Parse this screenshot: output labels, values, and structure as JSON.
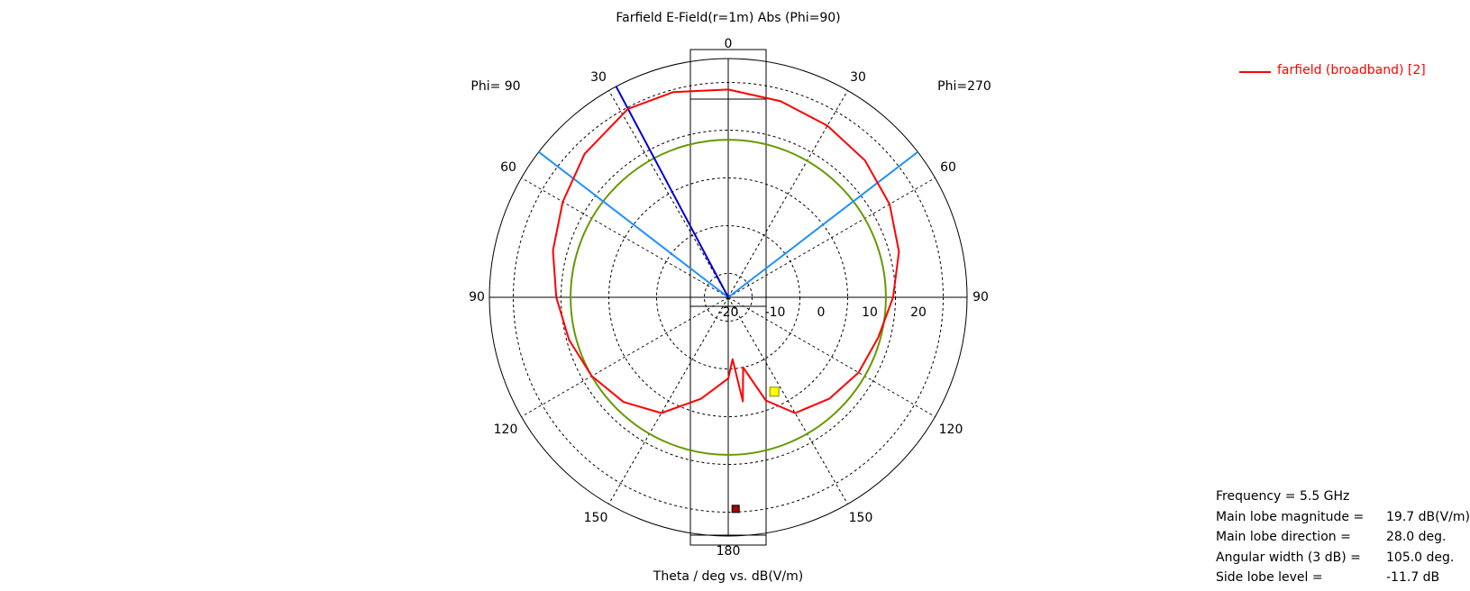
{
  "chart_data": {
    "type": "polar",
    "title": "Farfield E-Field(r=1m) Abs (Phi=90)",
    "xlabel": "Theta / deg vs. dB(V/m)",
    "left_half_label": "Phi= 90",
    "right_half_label": "Phi=270",
    "angle_labels": {
      "top": "0",
      "upper_left": "30",
      "upper_right": "30",
      "mid_upper_left": "60",
      "mid_upper_right": "60",
      "left": "90",
      "right": "90",
      "lower_mid_left": "120",
      "lower_mid_right": "120",
      "lower_left": "150",
      "lower_right": "150",
      "bottom": "180"
    },
    "radial_axis": {
      "min_db": -25,
      "max_db": 25,
      "ticks": [
        -20,
        -10,
        0,
        10,
        20
      ]
    },
    "series": [
      {
        "name": "farfield (broadband) [2]",
        "color": "#ff0000",
        "angle_convention": "signed theta from 0 (top); negative = Phi=90 side (left), positive = Phi=270 side (right)",
        "points": [
          [
            -180,
            -8
          ],
          [
            -165,
            -3
          ],
          [
            -150,
            3
          ],
          [
            -135,
            6
          ],
          [
            -120,
            8
          ],
          [
            -105,
            9.5
          ],
          [
            -90,
            11
          ],
          [
            -75,
            13
          ],
          [
            -60,
            15
          ],
          [
            -45,
            17.5
          ],
          [
            -28,
            19.7
          ],
          [
            -15,
            19.5
          ],
          [
            0,
            18.5
          ],
          [
            15,
            17.5
          ],
          [
            30,
            16.5
          ],
          [
            45,
            15.5
          ],
          [
            60,
            14
          ],
          [
            75,
            12
          ],
          [
            90,
            9.5
          ],
          [
            105,
            7.5
          ],
          [
            120,
            6.5
          ],
          [
            135,
            5
          ],
          [
            150,
            3
          ],
          [
            160,
            -2
          ],
          [
            168,
            -10
          ],
          [
            172,
            -3
          ],
          [
            176,
            -12
          ],
          [
            180,
            -8
          ]
        ]
      }
    ],
    "ref_circle_db": 8,
    "main_lobe_direction_deg": 28.0,
    "beam_edges_deg": [
      -52.5,
      52.5
    ],
    "colors": {
      "grid": "#000000",
      "curve": "#ff0000",
      "ref_circle": "#669900",
      "beam_edge": "#1e90ff",
      "main_lobe_line": "#0000cc",
      "marker_yellow": "#ffff00",
      "marker_red": "#aa0000"
    }
  },
  "legend": {
    "label": "farfield (broadband) [2]",
    "color": "#ff0000"
  },
  "info": [
    {
      "label": "Frequency = 5.5 GHz",
      "value": ""
    },
    {
      "label": "Main lobe magnitude =",
      "value": "19.7 dB(V/m)"
    },
    {
      "label": "Main lobe direction =",
      "value": "28.0 deg."
    },
    {
      "label": "Angular width (3 dB) =",
      "value": "105.0 deg."
    },
    {
      "label": "Side lobe level =",
      "value": "-11.7 dB"
    }
  ]
}
